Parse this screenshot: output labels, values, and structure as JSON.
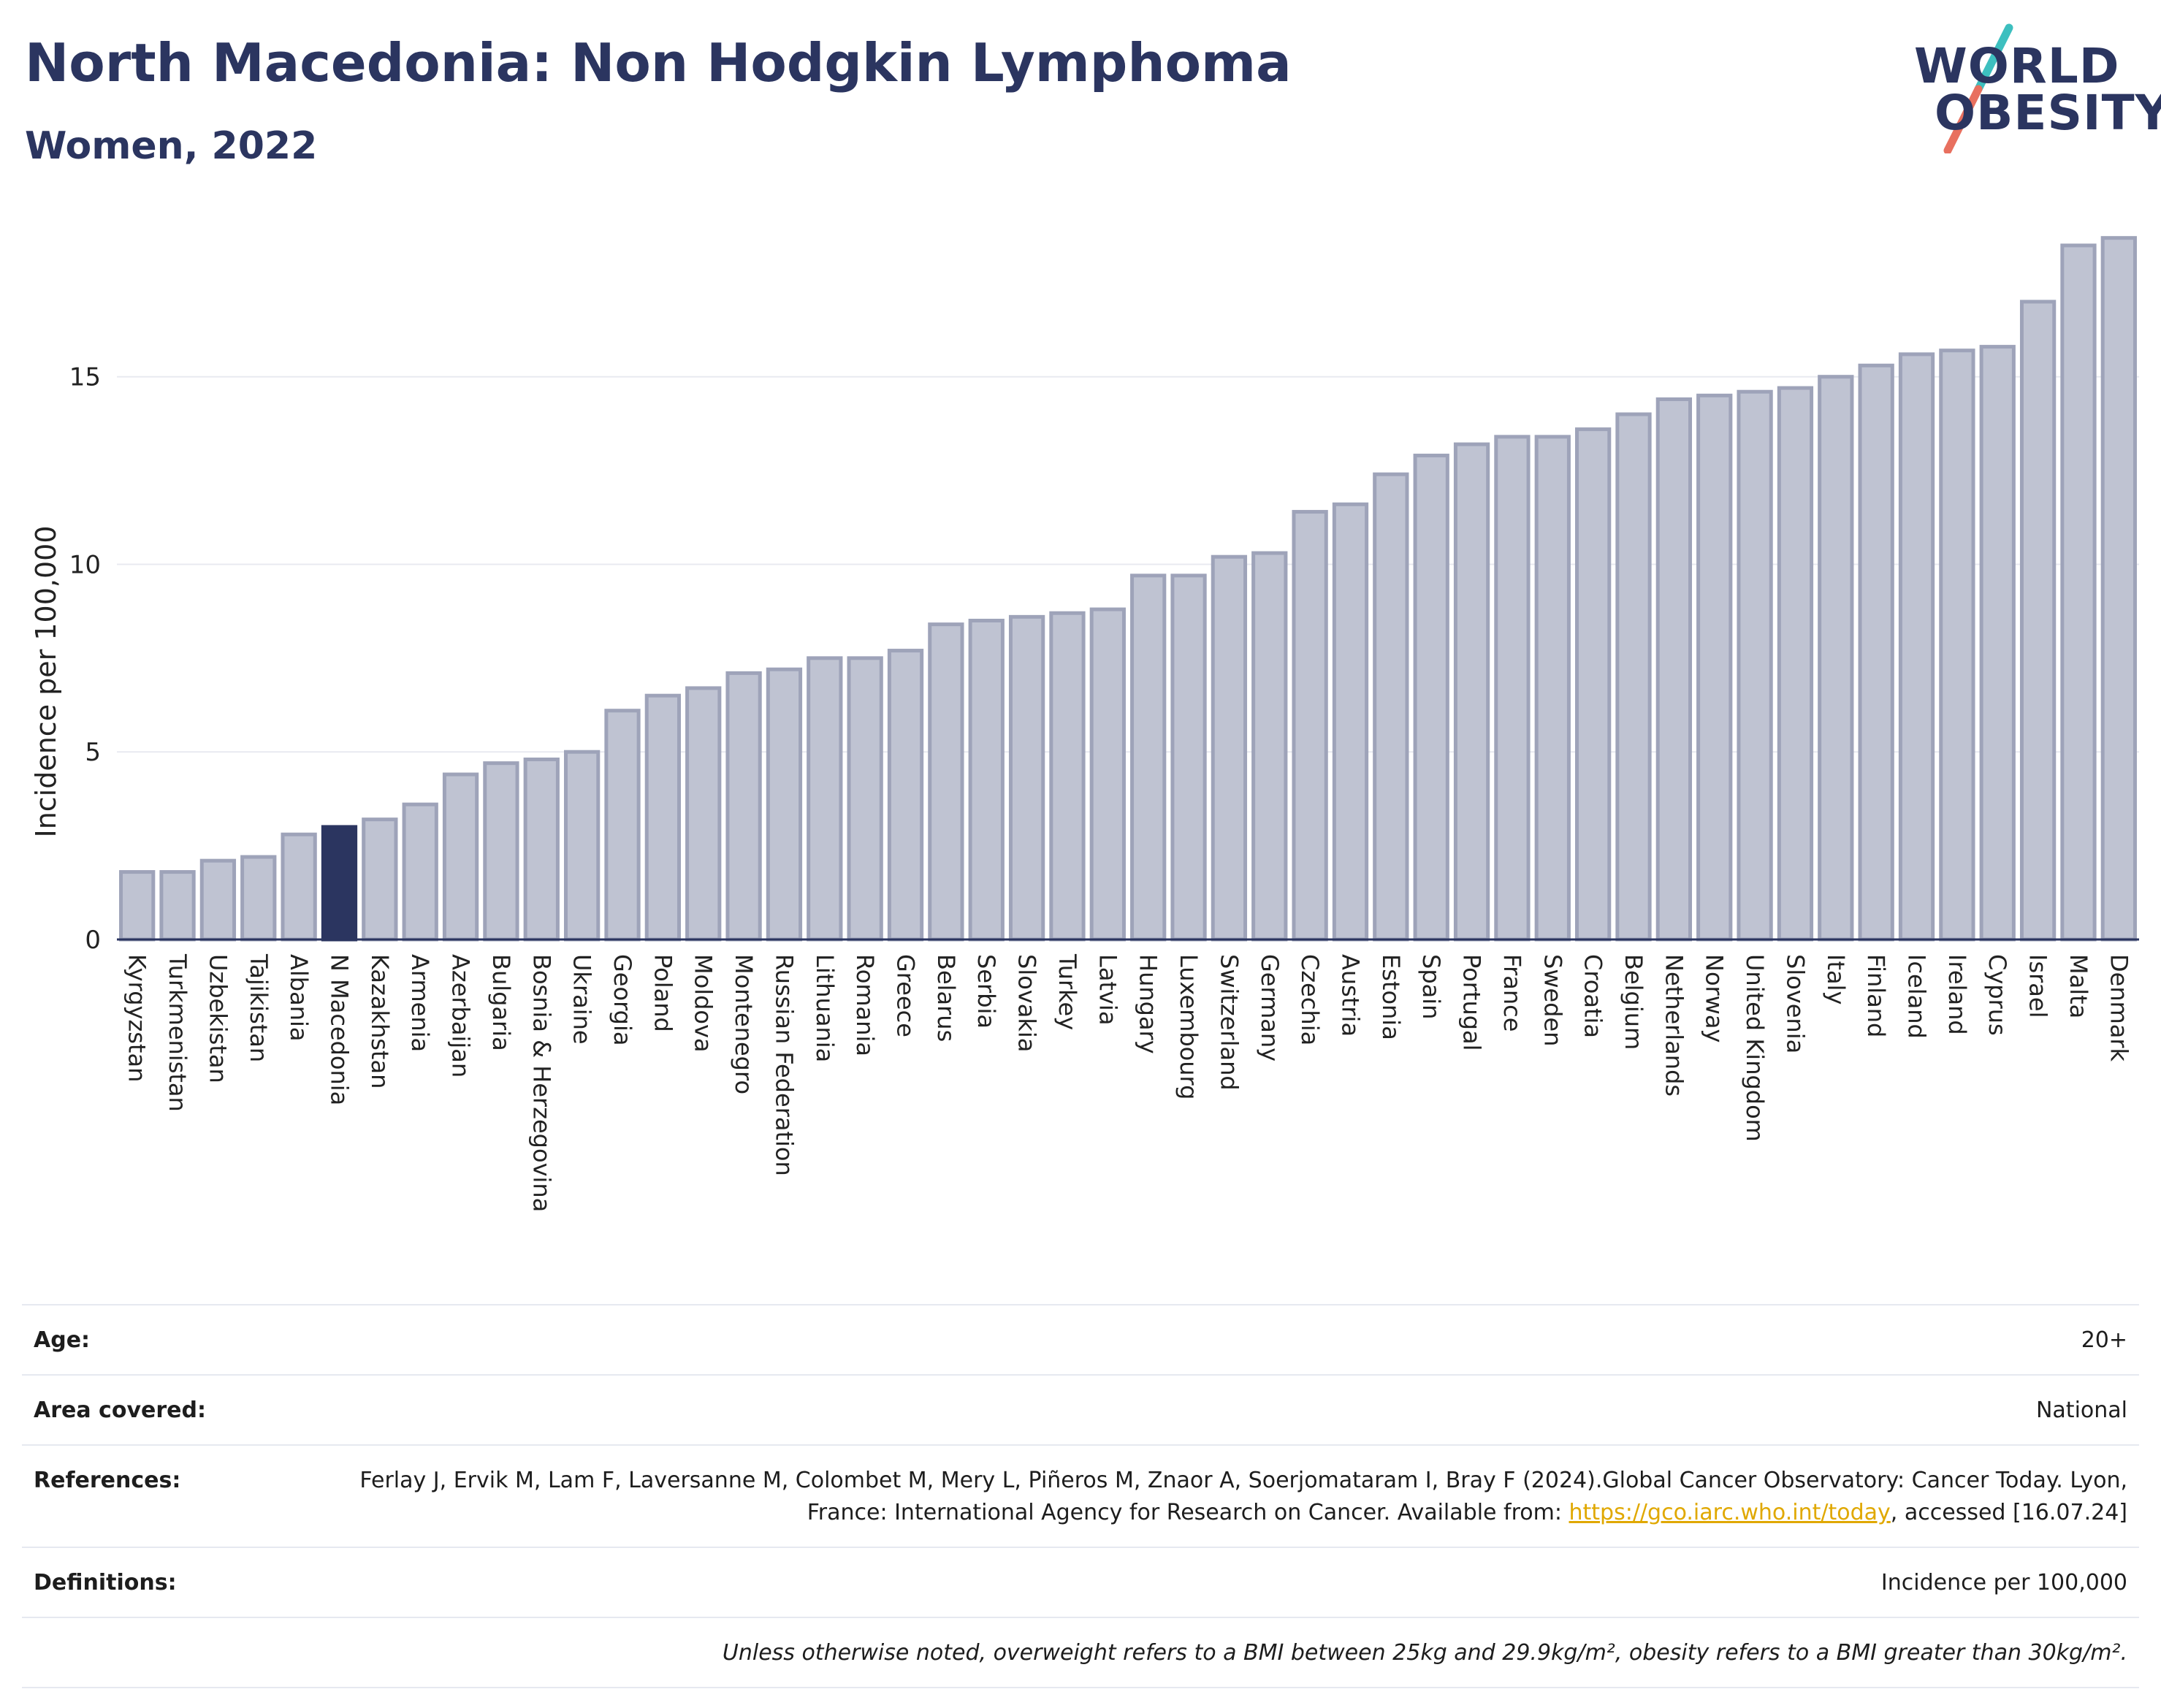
{
  "header": {
    "title": "North Macedonia: Non Hodgkin Lymphoma",
    "subtitle": "Women, 2022"
  },
  "logo": {
    "line1": "WORLD",
    "line2": "OBESITY",
    "colors": {
      "text": "#2b3560",
      "slash_top": "#3dbfbf",
      "slash_bottom": "#e8705f"
    }
  },
  "colors": {
    "bar": "#bfc3d2",
    "bar_border": "#9ea3b9",
    "highlight": "#2b3560",
    "grid": "#e8eaf0",
    "axis": "#2b3560"
  },
  "chart_data": {
    "type": "bar",
    "title": "North Macedonia: Non Hodgkin Lymphoma",
    "subtitle": "Women, 2022",
    "xlabel": "",
    "ylabel": "Incidence per 100,000",
    "ylim": [
      0,
      19.2
    ],
    "yticks": [
      0,
      5,
      10,
      15
    ],
    "grid": true,
    "highlight": "N Macedonia",
    "categories": [
      "Kyrgyzstan",
      "Turkmenistan",
      "Uzbekistan",
      "Tajikistan",
      "Albania",
      "N Macedonia",
      "Kazakhstan",
      "Armenia",
      "Azerbaijan",
      "Bulgaria",
      "Bosnia & Herzegovina",
      "Ukraine",
      "Georgia",
      "Poland",
      "Moldova",
      "Montenegro",
      "Russian Federation",
      "Lithuania",
      "Romania",
      "Greece",
      "Belarus",
      "Serbia",
      "Slovakia",
      "Turkey",
      "Latvia",
      "Hungary",
      "Luxembourg",
      "Switzerland",
      "Germany",
      "Czechia",
      "Austria",
      "Estonia",
      "Spain",
      "Portugal",
      "France",
      "Sweden",
      "Croatia",
      "Belgium",
      "Netherlands",
      "Norway",
      "United Kingdom",
      "Slovenia",
      "Italy",
      "Finland",
      "Iceland",
      "Ireland",
      "Cyprus",
      "Israel",
      "Malta",
      "Denmark"
    ],
    "values": [
      1.8,
      1.8,
      2.1,
      2.2,
      2.8,
      3.0,
      3.2,
      3.6,
      4.4,
      4.7,
      4.8,
      5.0,
      6.1,
      6.5,
      6.7,
      7.1,
      7.2,
      7.5,
      7.5,
      7.7,
      8.4,
      8.5,
      8.6,
      8.7,
      8.8,
      9.7,
      9.7,
      10.2,
      10.3,
      11.4,
      11.6,
      12.4,
      12.9,
      13.2,
      13.4,
      13.4,
      13.6,
      14.0,
      14.4,
      14.5,
      14.6,
      14.7,
      15.0,
      15.3,
      15.6,
      15.7,
      15.8,
      17.0,
      18.5,
      18.7
    ]
  },
  "info": {
    "age_label": "Age:",
    "age_value": "20+",
    "area_label": "Area covered:",
    "area_value": "National",
    "references_label": "References:",
    "references_text": "Ferlay J, Ervik M, Lam F, Laversanne M, Colombet M, Mery L, Piñeros M, Znaor A, Soerjomataram I, Bray F (2024).Global Cancer Observatory: Cancer Today. Lyon, France: International Agency for Research on Cancer. Available from:",
    "references_link": "https://gco.iarc.who.int/today",
    "references_suffix": ", accessed [16.07.24]",
    "definitions_label": "Definitions:",
    "definitions_value": "Incidence per 100,000",
    "note": "Unless otherwise noted, overweight refers to a BMI between 25kg and 29.9kg/m², obesity refers to a BMI greater than 30kg/m²."
  }
}
